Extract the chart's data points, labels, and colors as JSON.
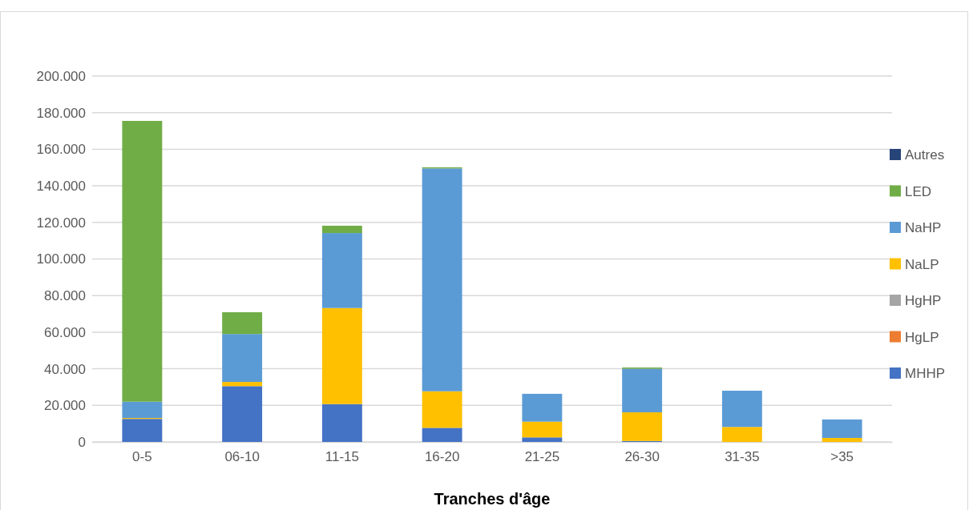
{
  "chart_data": {
    "type": "bar",
    "stacked": true,
    "xlabel": "Tranches d'âge",
    "categories": [
      "0-5",
      "06-10",
      "11-15",
      "16-20",
      "21-25",
      "26-30",
      "31-35",
      ">35"
    ],
    "series": [
      {
        "name": "MHHP",
        "color": "#4472c4",
        "values": [
          12600,
          30500,
          20700,
          7700,
          2500,
          500,
          0,
          0
        ]
      },
      {
        "name": "HgLP",
        "color": "#ed7d31",
        "values": [
          0,
          0,
          0,
          0,
          0,
          0,
          0,
          0
        ]
      },
      {
        "name": "HgHP",
        "color": "#a5a5a5",
        "values": [
          0,
          0,
          0,
          0,
          0,
          0,
          0,
          0
        ]
      },
      {
        "name": "NaLP",
        "color": "#ffc000",
        "values": [
          500,
          2300,
          52500,
          20000,
          8600,
          15700,
          8200,
          2200
        ]
      },
      {
        "name": "NaHP",
        "color": "#5b9bd5",
        "values": [
          8900,
          26200,
          41000,
          121800,
          15200,
          23800,
          19800,
          10100
        ]
      },
      {
        "name": "LED",
        "color": "#70ad47",
        "values": [
          153500,
          11900,
          4000,
          600,
          0,
          700,
          0,
          0
        ]
      },
      {
        "name": "Autres",
        "color": "#264478",
        "values": [
          0,
          0,
          0,
          0,
          0,
          0,
          0,
          0
        ]
      }
    ],
    "ylim": [
      0,
      200000
    ],
    "yticks": [
      0,
      {
        "value": 20000,
        "label": "20.000"
      },
      {
        "value": 40000,
        "label": "40.000"
      },
      {
        "value": 60000,
        "label": "60.000"
      },
      {
        "value": 80000,
        "label": "80.000"
      },
      {
        "value": 100000,
        "label": "100.000"
      },
      {
        "value": 120000,
        "label": "120.000"
      },
      {
        "value": 140000,
        "label": "140.000"
      },
      {
        "value": 160000,
        "label": "160.000"
      },
      {
        "value": 180000,
        "label": "180.000"
      },
      {
        "value": 200000,
        "label": "200.000"
      }
    ],
    "grid": "y",
    "legend": "right"
  }
}
